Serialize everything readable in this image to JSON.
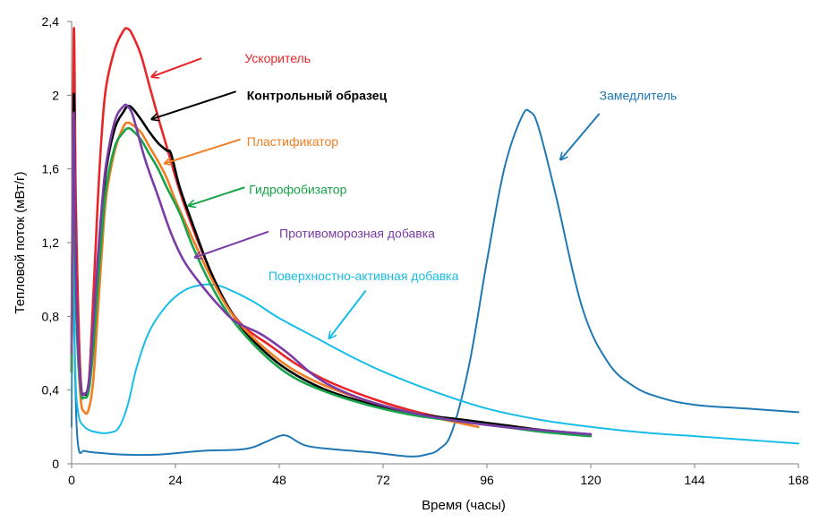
{
  "chart_data": {
    "type": "line",
    "xlabel": "Время (часы)",
    "ylabel": "Тепловой поток (мВт/г)",
    "xlim": [
      0,
      168
    ],
    "ylim": [
      0,
      2.4
    ],
    "x_ticks": [
      0,
      24,
      48,
      72,
      96,
      120,
      144,
      168
    ],
    "x_tick_labels": [
      "0",
      "24",
      "48",
      "72",
      "96",
      "120",
      "144",
      "168"
    ],
    "y_ticks": [
      0,
      0.4,
      0.8,
      1.2,
      1.6,
      2.0,
      2.4
    ],
    "y_tick_labels": [
      "0",
      "0,4",
      "0,8",
      "1,2",
      "1,6",
      "2",
      "2,4"
    ],
    "grid": false,
    "series": [
      {
        "name": "Замедлитель",
        "color": "#1F78B4",
        "x": [
          0,
          0.3,
          0.8,
          1.5,
          3,
          6,
          12,
          20,
          30,
          40,
          45,
          48,
          50,
          54,
          60,
          70,
          78,
          82,
          85,
          88,
          92,
          96,
          100,
          104,
          106,
          108,
          112,
          118,
          124,
          130,
          136,
          144,
          156,
          168
        ],
        "y": [
          0.2,
          1.2,
          0.5,
          0.1,
          0.07,
          0.06,
          0.05,
          0.05,
          0.07,
          0.08,
          0.12,
          0.15,
          0.15,
          0.1,
          0.08,
          0.06,
          0.04,
          0.05,
          0.08,
          0.18,
          0.55,
          1.1,
          1.6,
          1.88,
          1.91,
          1.82,
          1.45,
          0.85,
          0.55,
          0.42,
          0.36,
          0.32,
          0.3,
          0.28
        ]
      },
      {
        "name": "Поверхностно-активная добавка",
        "color": "#17BDE8",
        "x": [
          0,
          0.3,
          0.8,
          1.5,
          3,
          6,
          9,
          11,
          13,
          15,
          18,
          22,
          26,
          30,
          33,
          36,
          42,
          48,
          56,
          64,
          72,
          84,
          96,
          108,
          120,
          132,
          144,
          156,
          168
        ],
        "y": [
          0.35,
          1.3,
          0.55,
          0.28,
          0.2,
          0.17,
          0.17,
          0.2,
          0.32,
          0.52,
          0.72,
          0.86,
          0.94,
          0.97,
          0.97,
          0.95,
          0.88,
          0.79,
          0.69,
          0.59,
          0.5,
          0.39,
          0.3,
          0.24,
          0.2,
          0.17,
          0.15,
          0.13,
          0.11
        ]
      },
      {
        "name": "Ускоритель",
        "color": "#E8262A",
        "x": [
          0,
          0.5,
          1,
          2,
          3,
          4,
          5,
          6,
          7,
          8,
          10,
          12,
          13,
          14,
          16,
          18,
          20,
          22,
          25,
          28,
          32,
          36,
          40,
          46,
          52,
          60,
          70,
          80,
          92
        ],
        "y": [
          0.7,
          2.35,
          1.4,
          0.5,
          0.38,
          0.45,
          0.9,
          1.4,
          1.8,
          2.05,
          2.25,
          2.35,
          2.36,
          2.33,
          2.22,
          2.05,
          1.88,
          1.72,
          1.48,
          1.28,
          1.05,
          0.86,
          0.74,
          0.64,
          0.54,
          0.44,
          0.35,
          0.28,
          0.22
        ]
      },
      {
        "name": "Контрольный образец",
        "color": "#000000",
        "x": [
          0,
          0.5,
          1,
          2,
          3,
          4,
          5,
          6,
          7,
          8,
          10,
          12,
          13,
          14,
          16,
          18,
          20,
          22,
          23,
          25,
          28,
          32,
          36,
          40,
          46,
          52,
          60,
          70,
          80,
          90,
          100,
          110,
          120
        ],
        "y": [
          0.5,
          2.0,
          1.0,
          0.45,
          0.38,
          0.42,
          0.7,
          1.05,
          1.35,
          1.6,
          1.82,
          1.91,
          1.94,
          1.93,
          1.87,
          1.8,
          1.74,
          1.7,
          1.68,
          1.5,
          1.3,
          1.05,
          0.86,
          0.72,
          0.58,
          0.48,
          0.39,
          0.32,
          0.27,
          0.24,
          0.21,
          0.18,
          0.16
        ]
      },
      {
        "name": "Пластификатор",
        "color": "#F07D22",
        "x": [
          0,
          0.5,
          1,
          2,
          3,
          4,
          5,
          6,
          7,
          8,
          10,
          12,
          13,
          14,
          16,
          18,
          20,
          22,
          24,
          28,
          32,
          36,
          40,
          46,
          52,
          60,
          70,
          80,
          94
        ],
        "y": [
          0.6,
          1.9,
          0.9,
          0.38,
          0.28,
          0.3,
          0.45,
          0.8,
          1.15,
          1.45,
          1.7,
          1.83,
          1.85,
          1.84,
          1.8,
          1.72,
          1.64,
          1.55,
          1.43,
          1.22,
          1.02,
          0.85,
          0.73,
          0.6,
          0.5,
          0.41,
          0.33,
          0.27,
          0.2
        ]
      },
      {
        "name": "Гидрофобизатор",
        "color": "#17A34A",
        "x": [
          0,
          0.5,
          1,
          2,
          3,
          4,
          5,
          6,
          7,
          8,
          10,
          12,
          13,
          14,
          16,
          18,
          20,
          22,
          25,
          28,
          32,
          36,
          40,
          46,
          52,
          60,
          70,
          80,
          90,
          100,
          110,
          120
        ],
        "y": [
          0.5,
          1.8,
          0.9,
          0.42,
          0.36,
          0.4,
          0.62,
          0.95,
          1.25,
          1.5,
          1.72,
          1.8,
          1.82,
          1.81,
          1.76,
          1.68,
          1.6,
          1.5,
          1.36,
          1.18,
          0.98,
          0.82,
          0.7,
          0.56,
          0.46,
          0.38,
          0.31,
          0.26,
          0.23,
          0.2,
          0.17,
          0.15
        ]
      },
      {
        "name": "Противоморозная добавка",
        "color": "#7B3BA6",
        "x": [
          0,
          0.5,
          1,
          2,
          3,
          4,
          5,
          6,
          7,
          8,
          10,
          12,
          13,
          14,
          15,
          17,
          20,
          23,
          26,
          30,
          34,
          38,
          44,
          50,
          56,
          62,
          70,
          80,
          90,
          100,
          110,
          120
        ],
        "y": [
          0.6,
          1.9,
          1.0,
          0.45,
          0.38,
          0.45,
          0.75,
          1.1,
          1.4,
          1.63,
          1.86,
          1.94,
          1.94,
          1.9,
          1.82,
          1.65,
          1.45,
          1.25,
          1.1,
          0.97,
          0.86,
          0.77,
          0.7,
          0.6,
          0.48,
          0.4,
          0.33,
          0.27,
          0.23,
          0.2,
          0.18,
          0.16
        ]
      }
    ],
    "annotations": [
      {
        "text": "Ускоритель",
        "color": "#E8262A",
        "bold": false,
        "label_x": 40,
        "label_y": 2.2,
        "tail_x": 30,
        "tail_y": 2.2,
        "head_x": 18.5,
        "head_y": 2.1
      },
      {
        "text": "Контрольный образец",
        "color": "#000000",
        "bold": true,
        "label_x": 40.5,
        "label_y": 2.0,
        "tail_x": 38,
        "tail_y": 2.02,
        "head_x": 18.5,
        "head_y": 1.87
      },
      {
        "text": "Пластификатор",
        "color": "#F07D22",
        "bold": false,
        "label_x": 40.5,
        "label_y": 1.75,
        "tail_x": 39,
        "tail_y": 1.76,
        "head_x": 21.5,
        "head_y": 1.63
      },
      {
        "text": "Гидрофобизатор",
        "color": "#17A34A",
        "bold": false,
        "label_x": 41,
        "label_y": 1.49,
        "tail_x": 40,
        "tail_y": 1.5,
        "head_x": 27,
        "head_y": 1.4
      },
      {
        "text": "Противоморозная добавка",
        "color": "#7B3BA6",
        "bold": false,
        "label_x": 48,
        "label_y": 1.25,
        "tail_x": 45.5,
        "tail_y": 1.26,
        "head_x": 28.5,
        "head_y": 1.12
      },
      {
        "text": "Поверхностно-активная добавка",
        "color": "#17BDE8",
        "bold": false,
        "label_x": 45.5,
        "label_y": 1.02,
        "tail_x": 68,
        "tail_y": 0.94,
        "head_x": 59.5,
        "head_y": 0.68
      },
      {
        "text": "Замедлитель",
        "color": "#1F78B4",
        "bold": false,
        "label_x": 122,
        "label_y": 2.0,
        "tail_x": 122,
        "tail_y": 1.9,
        "head_x": 113,
        "head_y": 1.65
      }
    ]
  }
}
